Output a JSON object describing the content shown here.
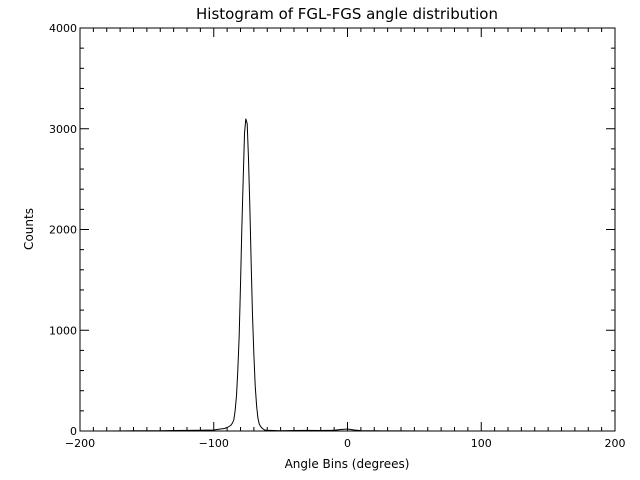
{
  "chart_data": {
    "type": "line",
    "title": "Histogram of FGL-FGS angle distribution",
    "xlabel": "Angle Bins (degrees)",
    "ylabel": "Counts",
    "xlim": [
      -200,
      200
    ],
    "ylim": [
      0,
      4000
    ],
    "xticks": [
      -200,
      -100,
      0,
      100,
      200
    ],
    "xtick_labels": [
      "−200",
      "−100",
      "0",
      "100",
      "200"
    ],
    "yticks": [
      0,
      1000,
      2000,
      3000,
      4000
    ],
    "ytick_labels": [
      "0",
      "1000",
      "2000",
      "3000",
      "4000"
    ],
    "grid": false,
    "series": [
      {
        "name": "counts",
        "x": [
          -200,
          -180,
          -160,
          -140,
          -130,
          -120,
          -110,
          -100,
          -95,
          -92,
          -90,
          -88,
          -87,
          -86,
          -85,
          -84,
          -83,
          -82,
          -81,
          -80,
          -79,
          -78,
          -77,
          -76,
          -75,
          -74,
          -73,
          -72,
          -71,
          -70,
          -69,
          -68,
          -67,
          -66,
          -65,
          -64,
          -63,
          -62,
          -60,
          -55,
          -50,
          -40,
          -30,
          -20,
          -10,
          -5,
          0,
          5,
          10,
          20,
          40,
          60,
          80,
          100,
          120,
          140,
          160,
          180,
          200
        ],
        "y": [
          0,
          0,
          2,
          3,
          5,
          6,
          8,
          10,
          20,
          25,
          35,
          50,
          60,
          80,
          110,
          200,
          350,
          600,
          950,
          1450,
          2000,
          2500,
          2950,
          3100,
          3050,
          2700,
          2200,
          1650,
          1150,
          750,
          450,
          250,
          130,
          70,
          45,
          30,
          20,
          10,
          8,
          5,
          3,
          5,
          6,
          5,
          8,
          15,
          20,
          10,
          4,
          2,
          1,
          0,
          0,
          0,
          0,
          0,
          0,
          0,
          0
        ]
      }
    ]
  }
}
